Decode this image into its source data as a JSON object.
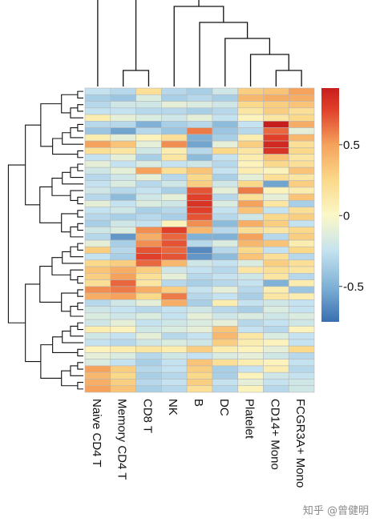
{
  "chart_data": {
    "type": "heatmap",
    "title": "",
    "columns": [
      "Naive CD4 T",
      "Memory CD4 T",
      "CD8 T",
      "NK",
      "B",
      "DC",
      "Platelet",
      "CD14+ Mono",
      "FCGR3A+ Mono"
    ],
    "row_count": 46,
    "color_scale": {
      "stops": [
        {
          "value": -0.75,
          "color": "#3a6fb0"
        },
        {
          "value": -0.5,
          "color": "#7fb2d6"
        },
        {
          "value": -0.25,
          "color": "#c4e2ef"
        },
        {
          "value": 0.0,
          "color": "#fbf8c8"
        },
        {
          "value": 0.25,
          "color": "#fbd98a"
        },
        {
          "value": 0.5,
          "color": "#f5a25c"
        },
        {
          "value": 0.75,
          "color": "#e0402a"
        },
        {
          "value": 0.9,
          "color": "#c81d1d"
        }
      ],
      "range": [
        -0.75,
        0.9
      ],
      "ticks": [
        {
          "value": 0.5,
          "label": "0.5"
        },
        {
          "value": 0,
          "label": "0"
        },
        {
          "value": -0.5,
          "label": "-0.5"
        }
      ]
    },
    "values": [
      [
        -0.25,
        -0.3,
        0.2,
        -0.3,
        -0.35,
        -0.2,
        0.3,
        0.35,
        0.5
      ],
      [
        -0.35,
        -0.4,
        -0.15,
        -0.35,
        -0.3,
        -0.35,
        0.4,
        0.45,
        0.45
      ],
      [
        -0.3,
        -0.2,
        -0.2,
        -0.1,
        -0.15,
        -0.2,
        0.25,
        0.3,
        0.35
      ],
      [
        -0.25,
        -0.25,
        -0.3,
        -0.3,
        -0.35,
        -0.3,
        0.15,
        0.3,
        0.2
      ],
      [
        0.1,
        -0.1,
        -0.15,
        -0.2,
        -0.1,
        -0.25,
        0.05,
        0.15,
        0.25
      ],
      [
        -0.3,
        -0.3,
        -0.5,
        -0.35,
        -0.3,
        -0.45,
        -0.25,
        0.9,
        0.45
      ],
      [
        -0.4,
        -0.55,
        -0.3,
        -0.4,
        0.6,
        -0.4,
        -0.3,
        0.65,
        -0.1
      ],
      [
        0.1,
        -0.1,
        0.05,
        0.2,
        -0.5,
        -0.35,
        0.1,
        0.75,
        0.4
      ],
      [
        0.5,
        0.35,
        -0.1,
        0.55,
        -0.55,
        -0.1,
        0.3,
        0.85,
        0.2
      ],
      [
        0.2,
        0.15,
        -0.2,
        0.1,
        -0.3,
        0.25,
        0.15,
        0.8,
        0.25
      ],
      [
        -0.25,
        -0.1,
        -0.35,
        0.15,
        -0.45,
        -0.25,
        0.1,
        0.35,
        0.15
      ],
      [
        -0.1,
        -0.25,
        -0.15,
        -0.25,
        -0.2,
        -0.3,
        0.05,
        0.25,
        0.2
      ],
      [
        -0.2,
        -0.1,
        0.5,
        0.2,
        0.35,
        -0.25,
        0.1,
        0.05,
        0.35
      ],
      [
        -0.3,
        -0.2,
        -0.1,
        -0.3,
        0.25,
        -0.35,
        -0.1,
        0.2,
        0.15
      ],
      [
        -0.25,
        -0.15,
        -0.3,
        -0.2,
        0.3,
        -0.2,
        0.25,
        -0.55,
        0.3
      ],
      [
        -0.2,
        -0.3,
        -0.25,
        -0.35,
        0.7,
        -0.1,
        0.6,
        0.05,
        0.1
      ],
      [
        -0.3,
        -0.45,
        -0.2,
        -0.1,
        0.75,
        -0.3,
        0.2,
        -0.1,
        0.35
      ],
      [
        -0.1,
        -0.25,
        -0.15,
        -0.2,
        0.8,
        -0.15,
        0.5,
        0.15,
        -0.35
      ],
      [
        -0.25,
        -0.2,
        -0.35,
        -0.3,
        0.75,
        -0.25,
        0.35,
        -0.25,
        0.2
      ],
      [
        -0.3,
        -0.35,
        -0.3,
        -0.35,
        0.7,
        -0.3,
        -0.2,
        0.25,
        0.3
      ],
      [
        -0.35,
        -0.2,
        -0.25,
        0.05,
        0.55,
        -0.45,
        0.45,
        0.3,
        -0.25
      ],
      [
        -0.2,
        -0.15,
        0.55,
        0.75,
        0.4,
        -0.3,
        0.2,
        0.15,
        0.25
      ],
      [
        -0.3,
        -0.6,
        0.45,
        0.65,
        -0.5,
        -0.5,
        0.5,
        -0.3,
        0.3
      ],
      [
        -0.1,
        -0.35,
        0.55,
        0.7,
        -0.3,
        -0.15,
        0.4,
        0.35,
        0.1
      ],
      [
        0.3,
        -0.3,
        0.7,
        0.65,
        -0.65,
        -0.3,
        0.25,
        -0.25,
        0.25
      ],
      [
        -0.25,
        -0.35,
        0.75,
        0.7,
        -0.6,
        -0.45,
        0.35,
        0.2,
        -0.3
      ],
      [
        0.25,
        0.3,
        0.65,
        0.4,
        -0.2,
        -0.25,
        -0.15,
        0.3,
        0.2
      ],
      [
        0.35,
        0.45,
        0.3,
        -0.2,
        -0.25,
        -0.3,
        0.15,
        0.2,
        0.15
      ],
      [
        0.3,
        0.5,
        0.2,
        -0.1,
        -0.3,
        -0.25,
        -0.2,
        0.15,
        -0.3
      ],
      [
        0.2,
        0.65,
        0.15,
        -0.3,
        -0.35,
        -0.3,
        -0.25,
        -0.5,
        0.1
      ],
      [
        0.55,
        0.6,
        0.45,
        0.3,
        -0.25,
        -0.1,
        -0.3,
        0.1,
        -0.4
      ],
      [
        0.45,
        0.5,
        0.25,
        0.6,
        -0.3,
        -0.25,
        -0.35,
        0.15,
        0.1
      ],
      [
        -0.3,
        -0.2,
        -0.1,
        0.45,
        -0.35,
        0.1,
        -0.25,
        -0.2,
        -0.25
      ],
      [
        -0.2,
        -0.25,
        -0.3,
        -0.25,
        -0.2,
        -0.3,
        -0.35,
        -0.15,
        -0.25
      ],
      [
        -0.15,
        -0.2,
        -0.15,
        -0.25,
        -0.1,
        -0.2,
        -0.15,
        -0.2,
        -0.15
      ],
      [
        -0.2,
        -0.1,
        -0.25,
        -0.2,
        -0.15,
        -0.1,
        -0.3,
        -0.25,
        -0.2
      ],
      [
        0.1,
        0.05,
        -0.2,
        -0.15,
        -0.1,
        0.35,
        -0.25,
        -0.3,
        0.05
      ],
      [
        -0.2,
        -0.25,
        -0.1,
        -0.3,
        -0.25,
        0.4,
        0.15,
        -0.15,
        -0.25
      ],
      [
        -0.25,
        -0.3,
        -0.2,
        -0.15,
        -0.2,
        0.3,
        0.1,
        0.05,
        -0.25
      ],
      [
        0.05,
        0.1,
        0.15,
        0.1,
        0.3,
        0.1,
        0.05,
        -0.1,
        0.25
      ],
      [
        -0.1,
        -0.15,
        -0.3,
        -0.2,
        -0.25,
        -0.15,
        -0.1,
        -0.2,
        -0.3
      ],
      [
        -0.15,
        -0.25,
        -0.35,
        -0.25,
        0.35,
        0.2,
        0.1,
        0.05,
        -0.25
      ],
      [
        0.5,
        0.3,
        -0.3,
        -0.25,
        0.3,
        -0.35,
        -0.25,
        0.1,
        -0.3
      ],
      [
        0.4,
        0.25,
        -0.35,
        -0.3,
        0.25,
        -0.35,
        0.05,
        -0.2,
        -0.25
      ],
      [
        0.45,
        0.3,
        -0.3,
        -0.25,
        0.3,
        -0.25,
        -0.1,
        -0.25,
        -0.2
      ],
      [
        0.5,
        0.35,
        -0.35,
        -0.3,
        0.2,
        -0.3,
        0.05,
        -0.3,
        -0.2
      ]
    ]
  },
  "watermark": "知乎 @曾健明"
}
